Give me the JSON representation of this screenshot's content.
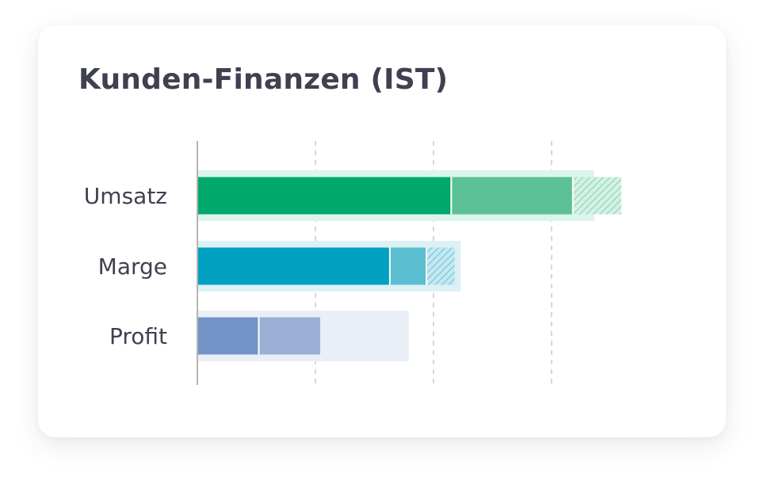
{
  "chart_data": {
    "type": "bar",
    "orientation": "horizontal",
    "title": "Kunden-Finanzen (IST)",
    "xlabel": "",
    "ylabel": "",
    "xlim": [
      0,
      4
    ],
    "grid": true,
    "categories": [
      "Umsatz",
      "Marge",
      "Profit"
    ],
    "series": [
      {
        "values": [
          2.15,
          1.63,
          0.52
        ]
      },
      {
        "values": [
          1.03,
          0.31,
          0.52
        ]
      },
      {
        "values": [
          0.41,
          0.24,
          0.0
        ]
      }
    ],
    "background_values": [
      3.36,
      2.23,
      1.79
    ],
    "colors": {
      "Umsatz": [
        "#00a86b",
        "#5cc096",
        "#bfe9d4"
      ],
      "Marge": [
        "#00a0c2",
        "#5bbfd1",
        "#a8dcea"
      ],
      "Profit": [
        "#7393c8",
        "#9aafd3",
        "#dce3f1"
      ],
      "background": [
        "#dbf5ec",
        "#ddf1f5",
        "#eaeef6"
      ],
      "axis": "#b5b5b5",
      "grid": "#c8c8c8"
    }
  }
}
